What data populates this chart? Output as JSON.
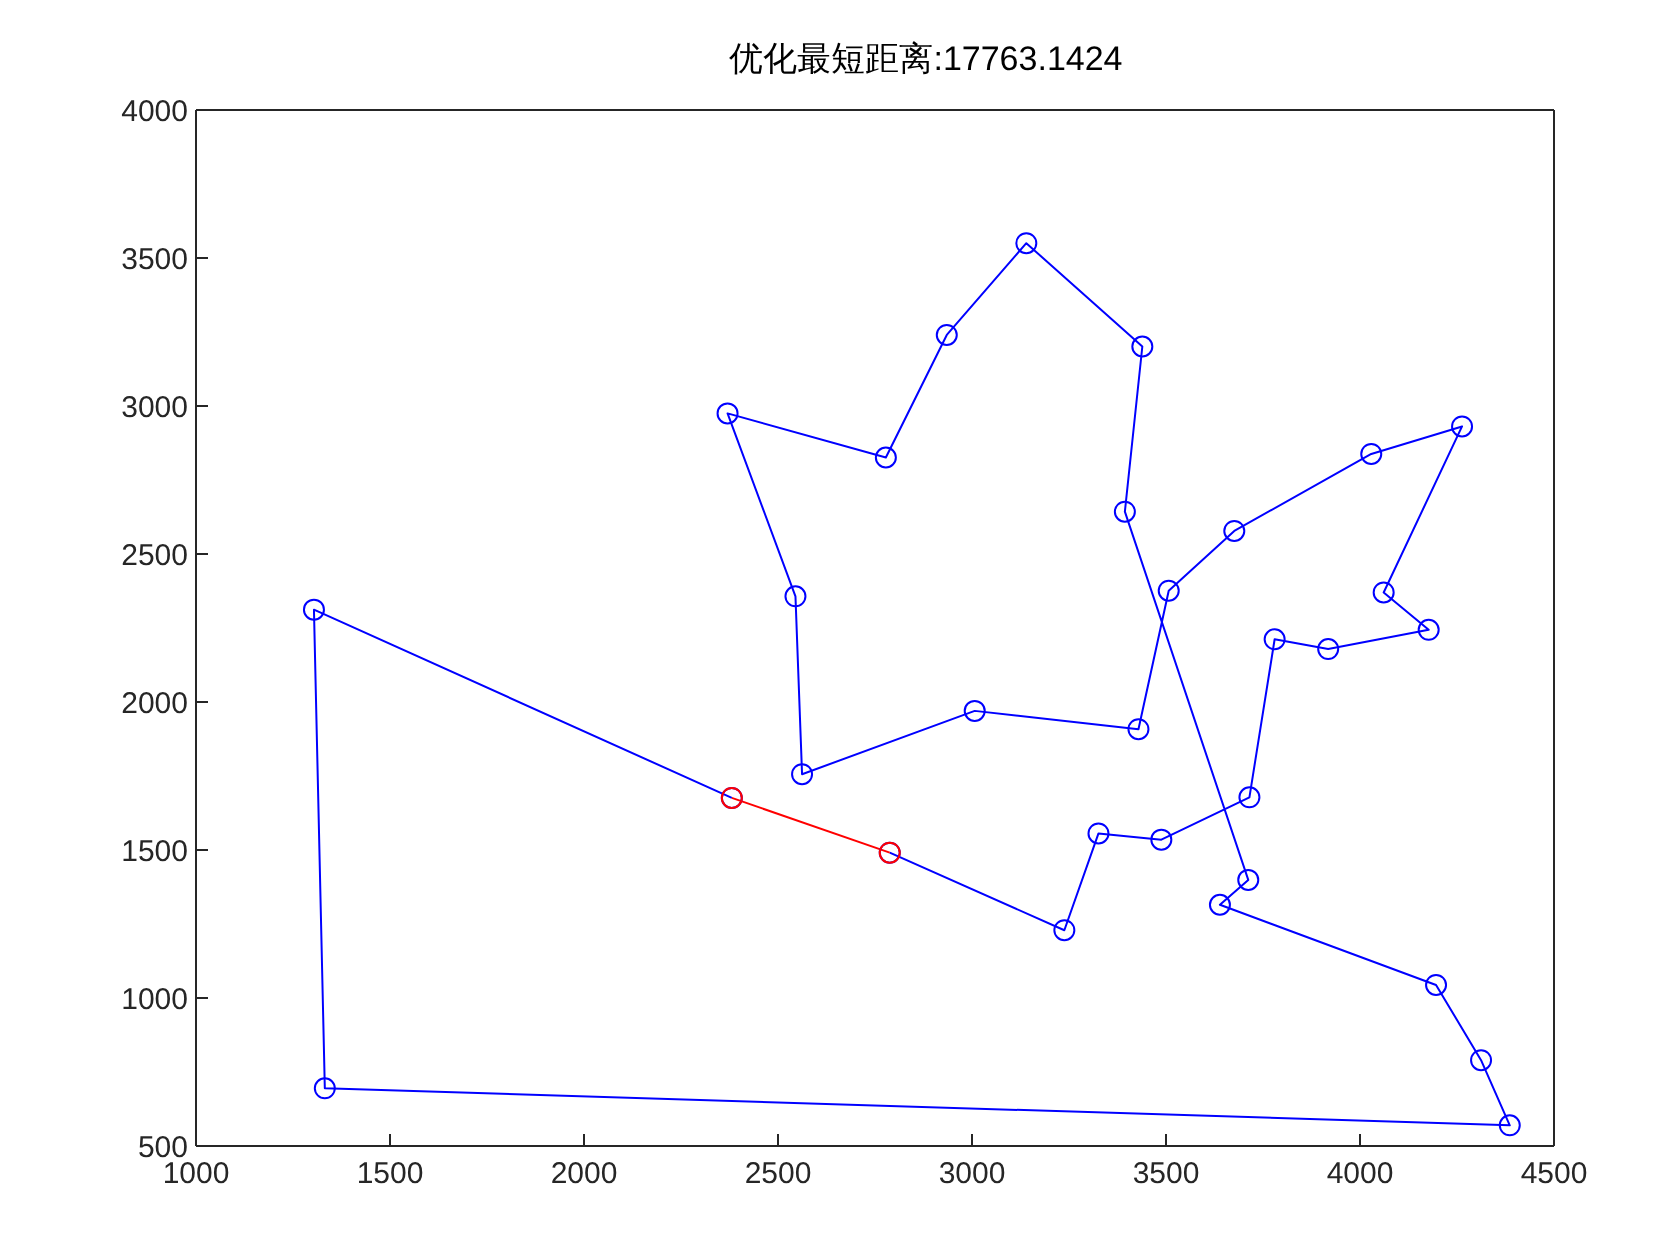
{
  "chart_data": {
    "type": "line",
    "title": "优化最短距离:17763.1424",
    "xlim": [
      1000,
      4500
    ],
    "xticks": [
      1000,
      1500,
      2000,
      2500,
      3000,
      3500,
      4000,
      4500
    ],
    "ylim": [
      500,
      4000
    ],
    "yticks": [
      500,
      1000,
      1500,
      2000,
      2500,
      3000,
      3500,
      4000
    ],
    "marker": "circle",
    "line_style": "solid",
    "series": [
      {
        "color": "#0000ff",
        "x": [
          2788,
          3238,
          3326,
          3488,
          3715,
          3780,
          3918,
          4177,
          4061,
          4263,
          4029,
          3676,
          3507,
          3429,
          3007,
          2562,
          2545,
          2370,
          2778,
          2935,
          3140,
          3439,
          3394,
          3712,
          3639,
          4196,
          4312,
          4386,
          1332,
          1304,
          2381
        ],
        "values": [
          1491,
          1229,
          1556,
          1535,
          1678,
          2212,
          2179,
          2244,
          2370,
          2931,
          2838,
          2578,
          2376,
          1908,
          1970,
          1756,
          2357,
          2975,
          2826,
          3240,
          3550,
          3201,
          2643,
          1399,
          1315,
          1044,
          790,
          570,
          695,
          2312,
          1676
        ]
      },
      {
        "color": "#ff0000",
        "x": [
          2381,
          2788
        ],
        "values": [
          1676,
          1491
        ]
      }
    ]
  }
}
